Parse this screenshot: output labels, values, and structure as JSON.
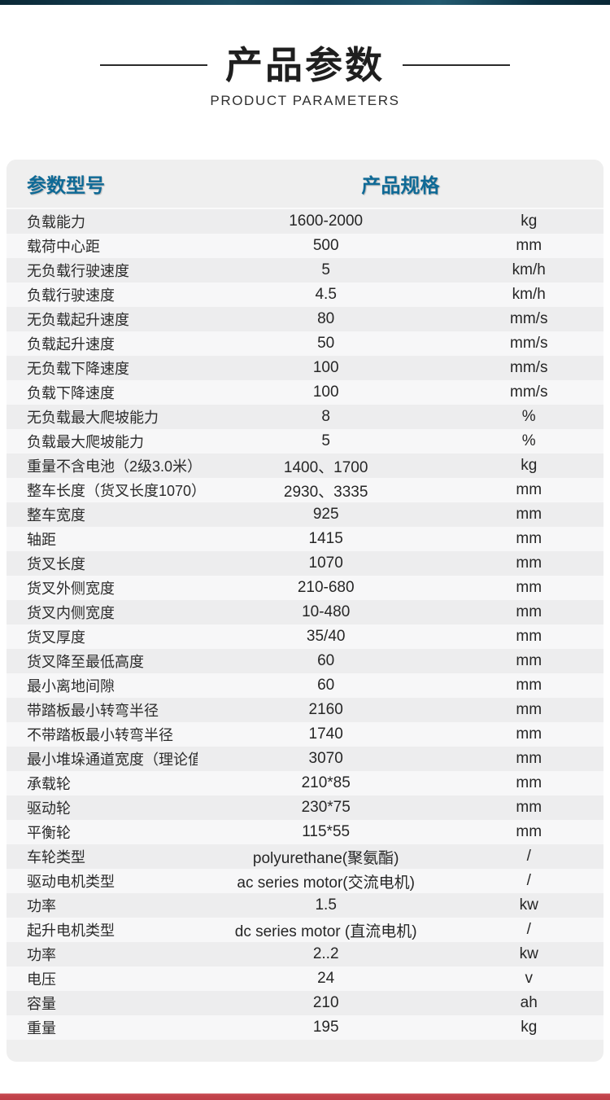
{
  "page": {
    "title": "产品参数",
    "subtitle": "PRODUCT PARAMETERS"
  },
  "colors": {
    "accent_blue": "#0f6a96",
    "top_bar_navy": "#0d2c3c",
    "bottom_bar_red": "#c2434b",
    "row_stripe_gray": "#ededee",
    "row_stripe_light": "#f7f7f8",
    "card_background": "#efefef",
    "title_text": "#1f1f1f"
  },
  "table": {
    "header": {
      "col_label": "参数型号",
      "col_spec": "产品规格"
    },
    "rows": [
      {
        "label": "负载能力",
        "value": "1600-2000",
        "unit": "kg"
      },
      {
        "label": "载荷中心距",
        "value": "500",
        "unit": "mm"
      },
      {
        "label": "无负载行驶速度",
        "value": "5",
        "unit": "km/h"
      },
      {
        "label": "负载行驶速度",
        "value": "4.5",
        "unit": "km/h"
      },
      {
        "label": "无负载起升速度",
        "value": "80",
        "unit": "mm/s"
      },
      {
        "label": "负载起升速度",
        "value": "50",
        "unit": "mm/s"
      },
      {
        "label": "无负载下降速度",
        "value": "100",
        "unit": "mm/s"
      },
      {
        "label": "负载下降速度",
        "value": "100",
        "unit": "mm/s"
      },
      {
        "label": "无负载最大爬坡能力",
        "value": "8",
        "unit": "%"
      },
      {
        "label": "负载最大爬坡能力",
        "value": "5",
        "unit": "%"
      },
      {
        "label": "重量不含电池（2级3.0米）",
        "value": "1400、1700",
        "unit": "kg"
      },
      {
        "label": "整车长度（货叉长度1070）",
        "value": "2930、3335",
        "unit": "mm"
      },
      {
        "label": "整车宽度",
        "value": "925",
        "unit": "mm"
      },
      {
        "label": "轴距",
        "value": "1415",
        "unit": "mm"
      },
      {
        "label": "货叉长度",
        "value": "1070",
        "unit": "mm"
      },
      {
        "label": "货叉外侧宽度",
        "value": "210-680",
        "unit": "mm"
      },
      {
        "label": "货叉内侧宽度",
        "value": "10-480",
        "unit": "mm"
      },
      {
        "label": "货叉厚度",
        "value": "35/40",
        "unit": "mm"
      },
      {
        "label": "货叉降至最低高度",
        "value": "60",
        "unit": "mm"
      },
      {
        "label": "最小离地间隙",
        "value": "60",
        "unit": "mm"
      },
      {
        "label": "带踏板最小转弯半径",
        "value": "2160",
        "unit": "mm"
      },
      {
        "label": "不带踏板最小转弯半径",
        "value": "1740",
        "unit": "mm"
      },
      {
        "label": "最小堆垛通道宽度（理论值）",
        "value": "3070",
        "unit": "mm"
      },
      {
        "label": "承载轮",
        "value": "210*85",
        "unit": "mm"
      },
      {
        "label": "驱动轮",
        "value": "230*75",
        "unit": "mm"
      },
      {
        "label": "平衡轮",
        "value": "115*55",
        "unit": "mm"
      },
      {
        "label": "车轮类型",
        "value": "polyurethane(聚氨酯)",
        "unit": "/"
      },
      {
        "label": "驱动电机类型",
        "value": "ac series motor(交流电机)",
        "unit": "/"
      },
      {
        "label": "功率",
        "value": "1.5",
        "unit": "kw"
      },
      {
        "label": "起升电机类型",
        "value": "dc series motor (直流电机)",
        "unit": "/"
      },
      {
        "label": "功率",
        "value": "2..2",
        "unit": "kw"
      },
      {
        "label": "电压",
        "value": "24",
        "unit": "v"
      },
      {
        "label": "容量",
        "value": "210",
        "unit": "ah"
      },
      {
        "label": "重量",
        "value": "195",
        "unit": "kg"
      }
    ]
  }
}
